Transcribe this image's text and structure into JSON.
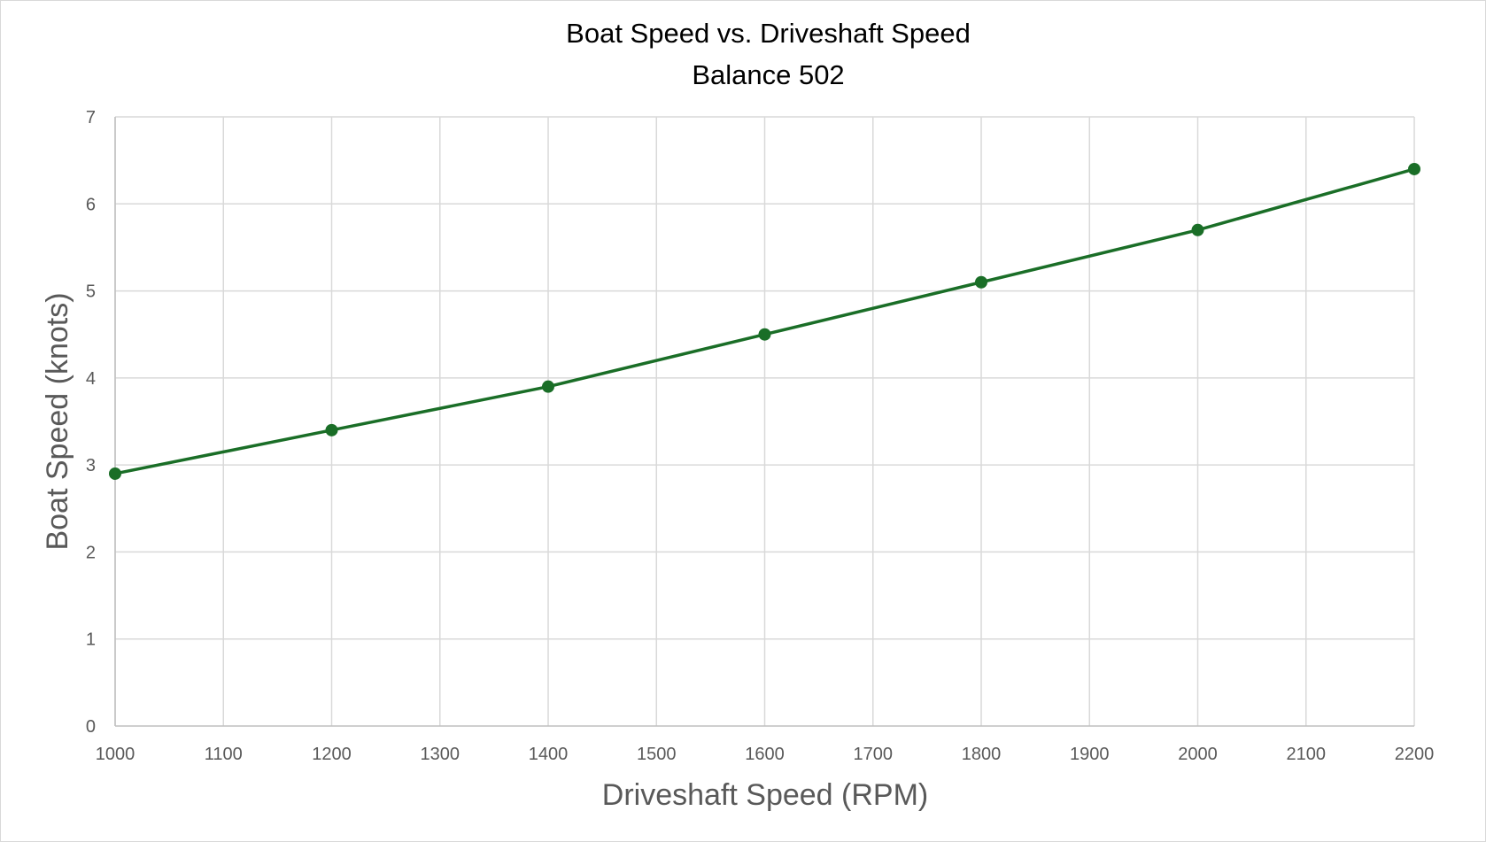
{
  "chart_data": {
    "type": "line",
    "title": "Boat Speed vs. Driveshaft Speed",
    "subtitle": "Balance 502",
    "xlabel": "Driveshaft Speed (RPM)",
    "ylabel": "Boat Speed (knots)",
    "xlim": [
      1000,
      2200
    ],
    "ylim": [
      0,
      7
    ],
    "xticks": [
      1000,
      1100,
      1200,
      1300,
      1400,
      1500,
      1600,
      1700,
      1800,
      1900,
      2000,
      2100,
      2200
    ],
    "yticks": [
      0,
      1,
      2,
      3,
      4,
      5,
      6,
      7
    ],
    "grid": true,
    "markers": true,
    "color": "#1a6e27",
    "x": [
      1000,
      1200,
      1400,
      1600,
      1800,
      2000,
      2200
    ],
    "y": [
      2.9,
      3.4,
      3.9,
      4.5,
      5.1,
      5.7,
      6.4
    ]
  }
}
